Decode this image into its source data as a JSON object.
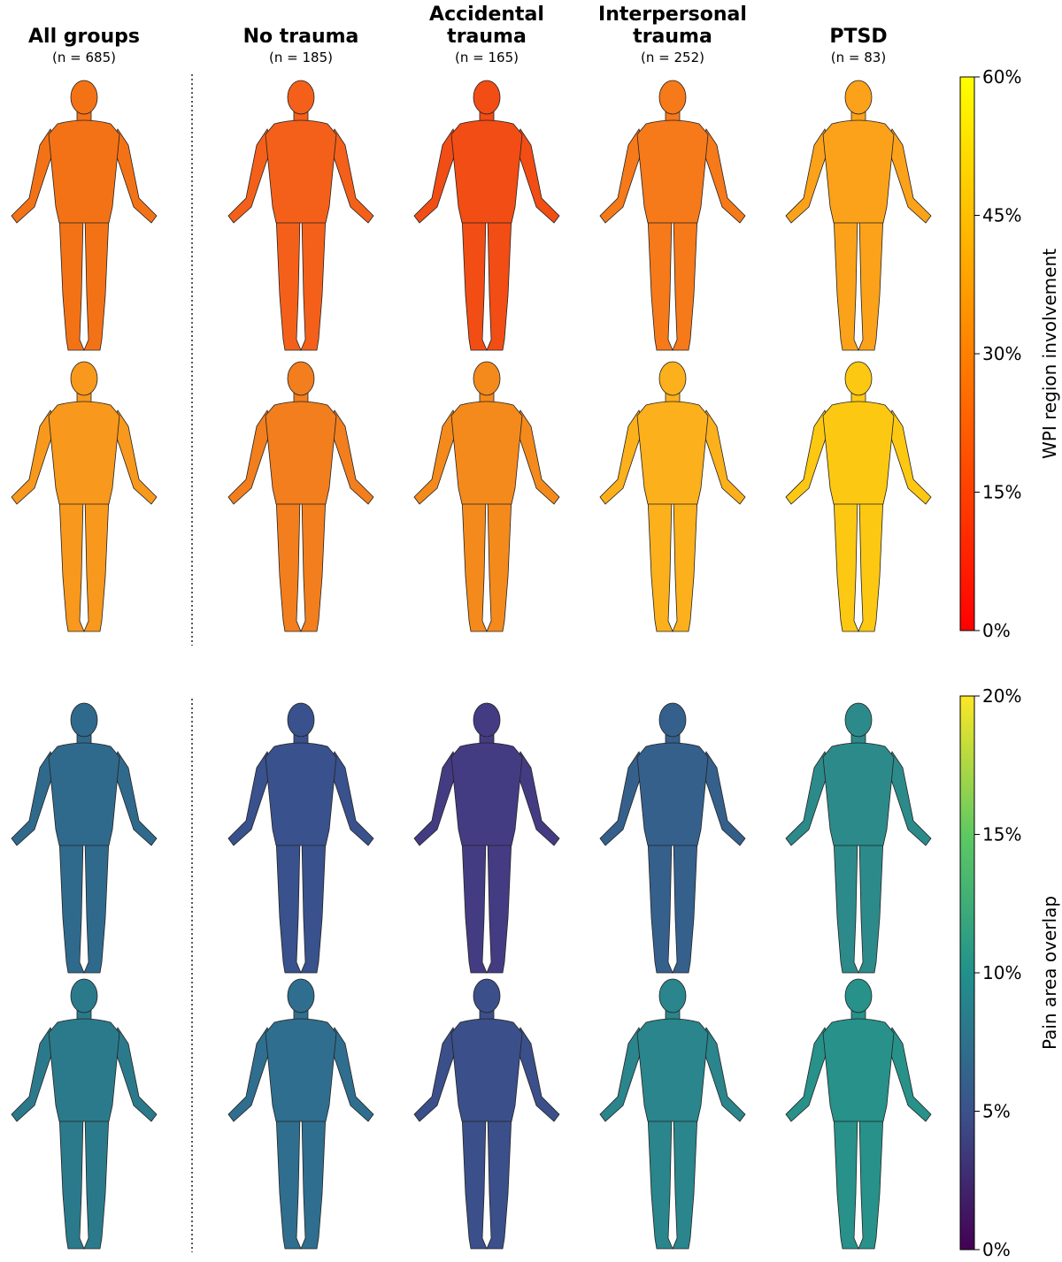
{
  "columns": [
    {
      "title": "All groups",
      "n": "(n = 685)"
    },
    {
      "title": "No trauma",
      "n": "(n = 185)"
    },
    {
      "title": "Accidental trauma",
      "n": "(n = 165)"
    },
    {
      "title": "Interpersonal trauma",
      "n": "(n = 252)"
    },
    {
      "title": "PTSD",
      "n": "(n = 83)"
    }
  ],
  "colorbars": [
    {
      "label": "WPI region involvement",
      "lim": [
        0,
        60
      ],
      "colormap": "autumn",
      "ticks": [
        {
          "value": 0,
          "label": "0%"
        },
        {
          "value": 15,
          "label": "15%"
        },
        {
          "value": 30,
          "label": "30%"
        },
        {
          "value": 45,
          "label": "45%"
        },
        {
          "value": 60,
          "label": "60%"
        }
      ]
    },
    {
      "label": "Pain area overlap",
      "lim": [
        0,
        20
      ],
      "colormap": "viridis",
      "ticks": [
        {
          "value": 0,
          "label": "0%"
        },
        {
          "value": 5,
          "label": "5%"
        },
        {
          "value": 10,
          "label": "10%"
        },
        {
          "value": 15,
          "label": "15%"
        },
        {
          "value": 20,
          "label": "20%"
        }
      ]
    }
  ]
}
